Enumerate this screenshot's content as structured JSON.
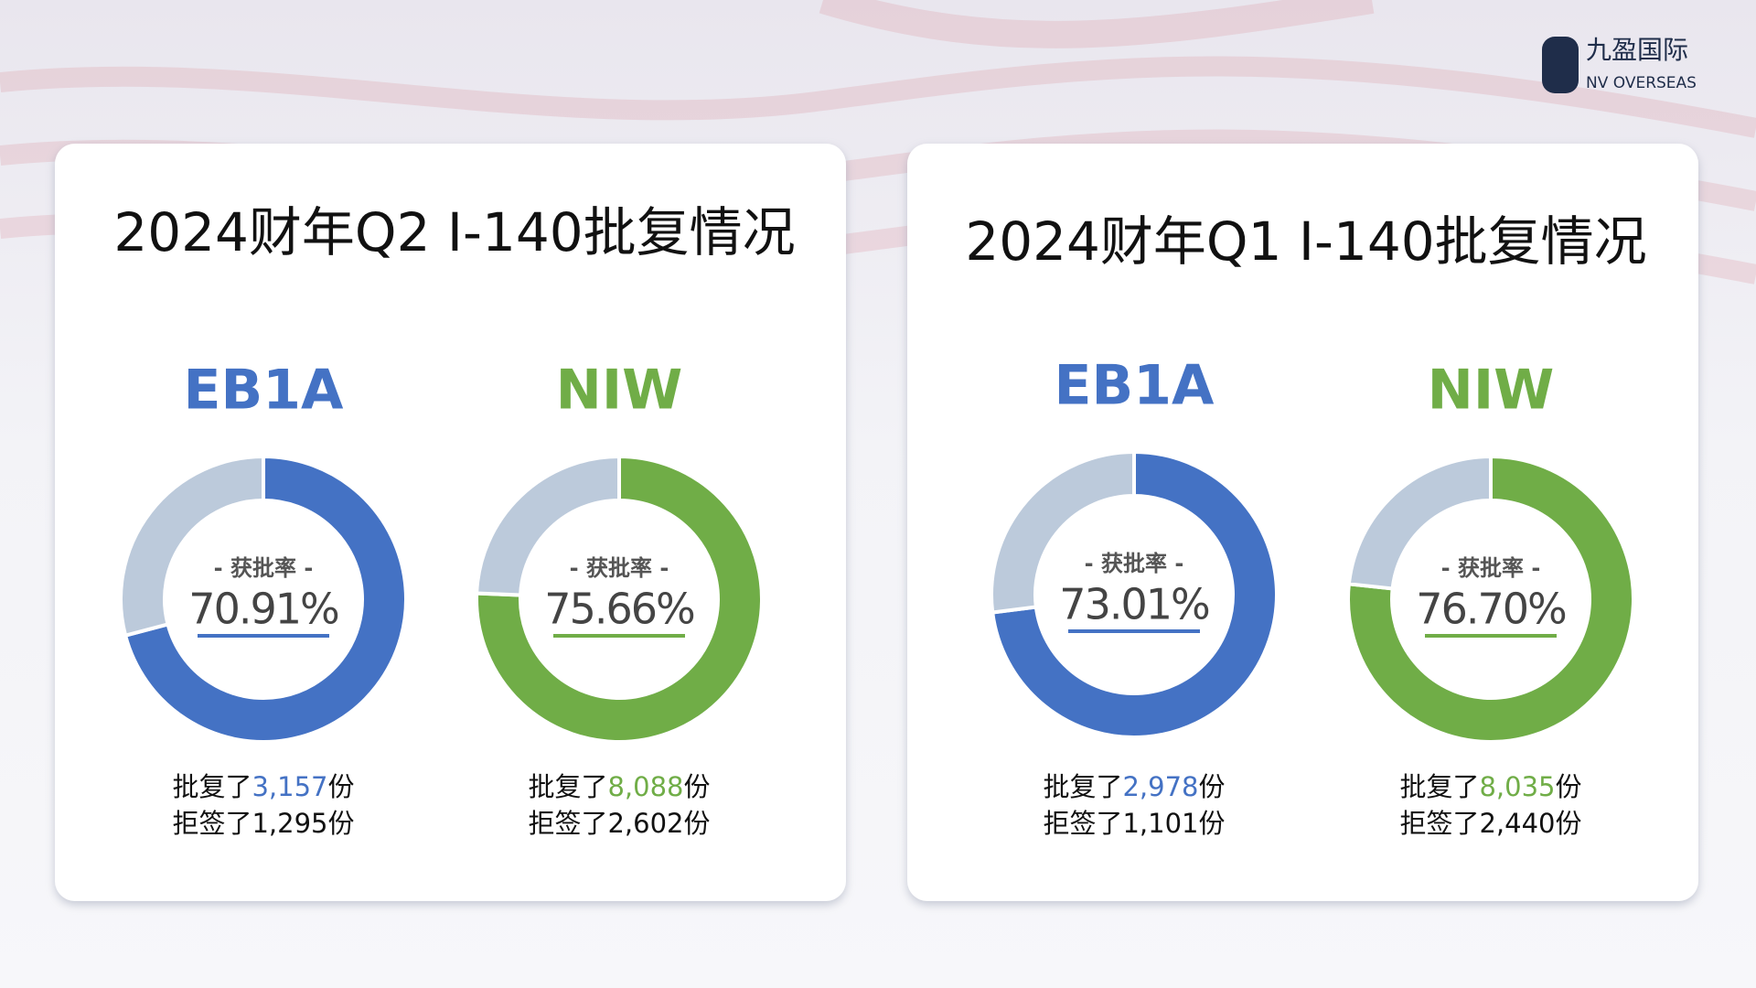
{
  "logo": {
    "name": "九盈国际",
    "subtitle": "NV OVERSEAS"
  },
  "labels": {
    "rate": "- 获批率 -",
    "approved": "批复了",
    "denied": "拒签了",
    "unit": "份"
  },
  "panels": [
    {
      "title": "2024财年Q2 I-140批复情况"
    },
    {
      "title": "2024财年Q1 I-140批复情况"
    }
  ],
  "chart_data": [
    {
      "type": "pie",
      "title": "EB1A",
      "color": "#4472c4",
      "rest_color": "#bccadb",
      "values": [
        3157,
        1295
      ],
      "value_labels": [
        "3,157",
        "1,295"
      ],
      "rate": 70.91,
      "rate_label": "70.91%"
    },
    {
      "type": "pie",
      "title": "NIW",
      "color": "#70ad47",
      "rest_color": "#bccadb",
      "values": [
        8088,
        2602
      ],
      "value_labels": [
        "8,088",
        "2,602"
      ],
      "rate": 75.66,
      "rate_label": "75.66%"
    },
    {
      "type": "pie",
      "title": "EB1A",
      "color": "#4472c4",
      "rest_color": "#bccadb",
      "values": [
        2978,
        1101
      ],
      "value_labels": [
        "2,978",
        "1,101"
      ],
      "rate": 73.01,
      "rate_label": "73.01%"
    },
    {
      "type": "pie",
      "title": "NIW",
      "color": "#70ad47",
      "rest_color": "#bccadb",
      "values": [
        8035,
        2440
      ],
      "value_labels": [
        "8,035",
        "2,440"
      ],
      "rate": 76.7,
      "rate_label": "76.70%"
    }
  ]
}
